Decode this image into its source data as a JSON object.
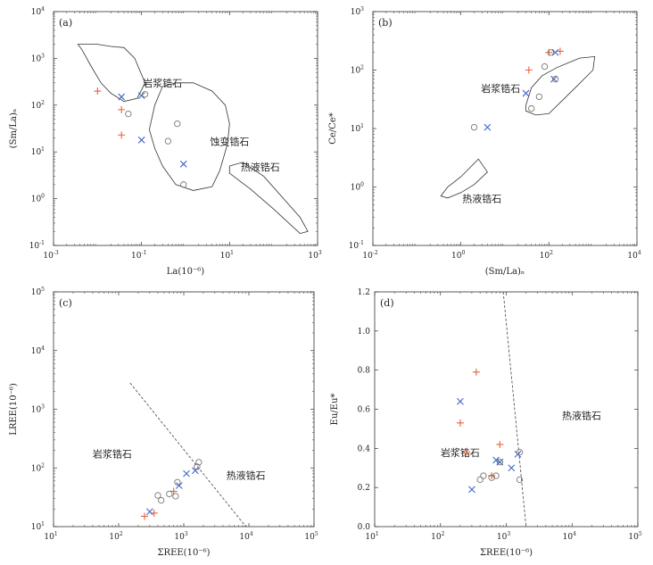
{
  "chart_data": [
    {
      "type": "scatter",
      "panel_label": "(a)",
      "xscale": "log",
      "yscale": "log",
      "xlim": [
        0.001,
        1000
      ],
      "ylim": [
        0.1,
        10000
      ],
      "xlabel": "La(10⁻⁶)",
      "ylabel": "(Sm/La)ₙ",
      "xticks": [
        {
          "v": 0.001,
          "b": "10",
          "e": "-3"
        },
        {
          "v": 0.1,
          "b": "10",
          "e": "-1"
        },
        {
          "v": 10,
          "b": "10",
          "e": "1"
        },
        {
          "v": 1000,
          "b": "10",
          "e": "3"
        }
      ],
      "yticks": [
        {
          "v": 0.1,
          "b": "10",
          "e": "-1"
        },
        {
          "v": 1,
          "b": "10",
          "e": "0"
        },
        {
          "v": 10,
          "b": "10",
          "e": "1"
        },
        {
          "v": 100,
          "b": "10",
          "e": "2"
        },
        {
          "v": 1000,
          "b": "10",
          "e": "3"
        },
        {
          "v": 10000,
          "b": "10",
          "e": "4"
        }
      ],
      "regions": [
        {
          "name": "岩浆锆石",
          "label_at": [
            0.3,
            250
          ],
          "polygon": [
            [
              0.0036,
              2000
            ],
            [
              0.0045,
              1500
            ],
            [
              0.007,
              700
            ],
            [
              0.012,
              300
            ],
            [
              0.02,
              180
            ],
            [
              0.04,
              120
            ],
            [
              0.08,
              140
            ],
            [
              0.12,
              300
            ],
            [
              0.07,
              1000
            ],
            [
              0.04,
              1700
            ],
            [
              0.02,
              1800
            ],
            [
              0.01,
              2000
            ]
          ]
        },
        {
          "name": "蚀变锆石",
          "label_at": [
            10,
            14
          ],
          "polygon": [
            [
              0.15,
              30
            ],
            [
              0.2,
              100
            ],
            [
              0.3,
              250
            ],
            [
              0.6,
              300
            ],
            [
              1.5,
              300
            ],
            [
              4,
              200
            ],
            [
              8,
              100
            ],
            [
              10,
              40
            ],
            [
              9,
              15
            ],
            [
              6,
              4
            ],
            [
              4,
              1.8
            ],
            [
              1.5,
              1.5
            ],
            [
              0.6,
              2
            ],
            [
              0.3,
              5
            ],
            [
              0.2,
              12
            ]
          ]
        },
        {
          "name": "热液锆石",
          "label_at": [
            50,
            4
          ],
          "polygon": [
            [
              10,
              5
            ],
            [
              20,
              6
            ],
            [
              60,
              3
            ],
            [
              400,
              0.4
            ],
            [
              600,
              0.2
            ],
            [
              400,
              0.18
            ],
            [
              100,
              0.6
            ],
            [
              30,
              1.6
            ],
            [
              10,
              3.5
            ]
          ]
        }
      ],
      "series": [
        {
          "marker": "plus",
          "color": "#e8633a",
          "points": [
            [
              0.01,
              200
            ],
            [
              0.035,
              80
            ],
            [
              0.035,
              23
            ]
          ]
        },
        {
          "marker": "x",
          "color": "#3f66c9",
          "points": [
            [
              0.035,
              150
            ],
            [
              0.1,
              160
            ],
            [
              0.1,
              18
            ],
            [
              0.9,
              5.5
            ]
          ]
        },
        {
          "marker": "circle",
          "color": "#777777",
          "points": [
            [
              0.05,
              65
            ],
            [
              0.12,
              170
            ],
            [
              0.65,
              40
            ],
            [
              0.4,
              17
            ],
            [
              0.9,
              2
            ]
          ]
        }
      ]
    },
    {
      "type": "scatter",
      "panel_label": "(b)",
      "xscale": "log",
      "yscale": "log",
      "xlim": [
        0.01,
        10000
      ],
      "ylim": [
        0.1,
        1000
      ],
      "xlabel": "(Sm/La)ₙ",
      "ylabel": "Ce/Ce*",
      "xticks": [
        {
          "v": 0.01,
          "b": "10",
          "e": "-2"
        },
        {
          "v": 1,
          "b": "10",
          "e": "0"
        },
        {
          "v": 100,
          "b": "10",
          "e": "2"
        },
        {
          "v": 10000,
          "b": "10",
          "e": "4"
        }
      ],
      "yticks": [
        {
          "v": 0.1,
          "b": "10",
          "e": "-1"
        },
        {
          "v": 1,
          "b": "10",
          "e": "0"
        },
        {
          "v": 10,
          "b": "10",
          "e": "1"
        },
        {
          "v": 100,
          "b": "10",
          "e": "2"
        },
        {
          "v": 1000,
          "b": "10",
          "e": "3"
        }
      ],
      "regions": [
        {
          "name": "岩浆锆石",
          "label_at": [
            8,
            42
          ],
          "polygon": [
            [
              30,
              25
            ],
            [
              40,
              50
            ],
            [
              70,
              80
            ],
            [
              150,
              110
            ],
            [
              500,
              160
            ],
            [
              1100,
              170
            ],
            [
              1000,
              100
            ],
            [
              400,
              50
            ],
            [
              200,
              30
            ],
            [
              100,
              18
            ],
            [
              50,
              17
            ],
            [
              30,
              20
            ]
          ]
        },
        {
          "name": "热液锆石",
          "label_at": [
            3,
            0.55
          ],
          "polygon": [
            [
              0.35,
              0.7
            ],
            [
              0.5,
              1
            ],
            [
              1,
              1.5
            ],
            [
              2.5,
              3
            ],
            [
              4,
              1.8
            ],
            [
              2,
              1.1
            ],
            [
              1,
              0.8
            ],
            [
              0.5,
              0.65
            ]
          ]
        }
      ],
      "series": [
        {
          "marker": "plus",
          "color": "#e8633a",
          "points": [
            [
              35,
              100
            ],
            [
              100,
              200
            ],
            [
              180,
              210
            ]
          ]
        },
        {
          "marker": "x",
          "color": "#3f66c9",
          "points": [
            [
              30,
              40
            ],
            [
              4,
              10.5
            ],
            [
              130,
              70
            ],
            [
              140,
              200
            ]
          ]
        },
        {
          "marker": "circle",
          "color": "#777777",
          "points": [
            [
              2,
              10.5
            ],
            [
              40,
              22
            ],
            [
              60,
              35
            ],
            [
              80,
              115
            ],
            [
              110,
              200
            ],
            [
              140,
              70
            ]
          ]
        }
      ]
    },
    {
      "type": "scatter",
      "panel_label": "(c)",
      "xscale": "log",
      "yscale": "log",
      "xlim": [
        10,
        100000
      ],
      "ylim": [
        10,
        100000
      ],
      "xlabel": "ΣREE(10⁻⁶)",
      "ylabel": "LREE(10⁻⁶)",
      "xticks": [
        {
          "v": 10,
          "b": "10",
          "e": "1"
        },
        {
          "v": 100,
          "b": "10",
          "e": "2"
        },
        {
          "v": 1000,
          "b": "10",
          "e": "3"
        },
        {
          "v": 10000,
          "b": "10",
          "e": "4"
        },
        {
          "v": 100000,
          "b": "10",
          "e": "5"
        }
      ],
      "yticks": [
        {
          "v": 10,
          "b": "10",
          "e": "1"
        },
        {
          "v": 100,
          "b": "10",
          "e": "2"
        },
        {
          "v": 1000,
          "b": "10",
          "e": "3"
        },
        {
          "v": 10000,
          "b": "10",
          "e": "4"
        },
        {
          "v": 100000,
          "b": "10",
          "e": "5"
        }
      ],
      "divider": [
        [
          150,
          2800
        ],
        [
          9000,
          10
        ]
      ],
      "regions": [
        {
          "name": "岩浆锆石",
          "label_at": [
            80,
            150
          ]
        },
        {
          "name": "热液锆石",
          "label_at": [
            9000,
            65
          ]
        }
      ],
      "series": [
        {
          "marker": "plus",
          "color": "#e8633a",
          "points": [
            [
              250,
              15
            ],
            [
              350,
              17
            ],
            [
              700,
              40
            ]
          ]
        },
        {
          "marker": "x",
          "color": "#3f66c9",
          "points": [
            [
              300,
              18
            ],
            [
              850,
              50
            ],
            [
              1100,
              80
            ],
            [
              1500,
              90
            ]
          ]
        },
        {
          "marker": "circle",
          "color": "#777777",
          "points": [
            [
              400,
              34
            ],
            [
              450,
              28
            ],
            [
              600,
              36
            ],
            [
              750,
              33
            ],
            [
              800,
              57
            ],
            [
              1600,
              105
            ],
            [
              1700,
              125
            ]
          ]
        }
      ]
    },
    {
      "type": "scatter",
      "panel_label": "(d)",
      "xscale": "log",
      "yscale": "linear",
      "xlim": [
        10,
        100000
      ],
      "ylim": [
        0,
        1.2
      ],
      "xlabel": "ΣREE(10⁻⁶)",
      "ylabel": "Eu/Eu*",
      "xticks": [
        {
          "v": 10,
          "b": "10",
          "e": "1"
        },
        {
          "v": 100,
          "b": "10",
          "e": "2"
        },
        {
          "v": 1000,
          "b": "10",
          "e": "3"
        },
        {
          "v": 10000,
          "b": "10",
          "e": "4"
        },
        {
          "v": 100000,
          "b": "10",
          "e": "5"
        }
      ],
      "yticks": [
        {
          "v": 0,
          "t": "0.0"
        },
        {
          "v": 0.2,
          "t": "0.2"
        },
        {
          "v": 0.4,
          "t": "0.4"
        },
        {
          "v": 0.6,
          "t": "0.6"
        },
        {
          "v": 0.8,
          "t": "0.8"
        },
        {
          "v": 1.0,
          "t": "1.0"
        },
        {
          "v": 1.2,
          "t": "1.2"
        }
      ],
      "divider": [
        [
          900,
          1.2
        ],
        [
          2000,
          0
        ]
      ],
      "regions": [
        {
          "name": "岩浆锆石",
          "label_at": [
            200,
            0.36
          ]
        },
        {
          "name": "热液锆石",
          "label_at": [
            14000,
            0.55
          ]
        }
      ],
      "series": [
        {
          "marker": "plus",
          "color": "#e8633a",
          "points": [
            [
              200,
              0.53
            ],
            [
              250,
              0.38
            ],
            [
              350,
              0.79
            ],
            [
              600,
              0.26
            ],
            [
              800,
              0.42
            ]
          ]
        },
        {
          "marker": "x",
          "color": "#3f66c9",
          "points": [
            [
              200,
              0.64
            ],
            [
              300,
              0.19
            ],
            [
              700,
              0.34
            ],
            [
              800,
              0.33
            ],
            [
              1200,
              0.3
            ],
            [
              1500,
              0.37
            ]
          ]
        },
        {
          "marker": "circle",
          "color": "#777777",
          "points": [
            [
              400,
              0.24
            ],
            [
              450,
              0.26
            ],
            [
              600,
              0.25
            ],
            [
              700,
              0.26
            ],
            [
              800,
              0.33
            ],
            [
              1600,
              0.38
            ],
            [
              1600,
              0.24
            ]
          ]
        }
      ]
    }
  ]
}
